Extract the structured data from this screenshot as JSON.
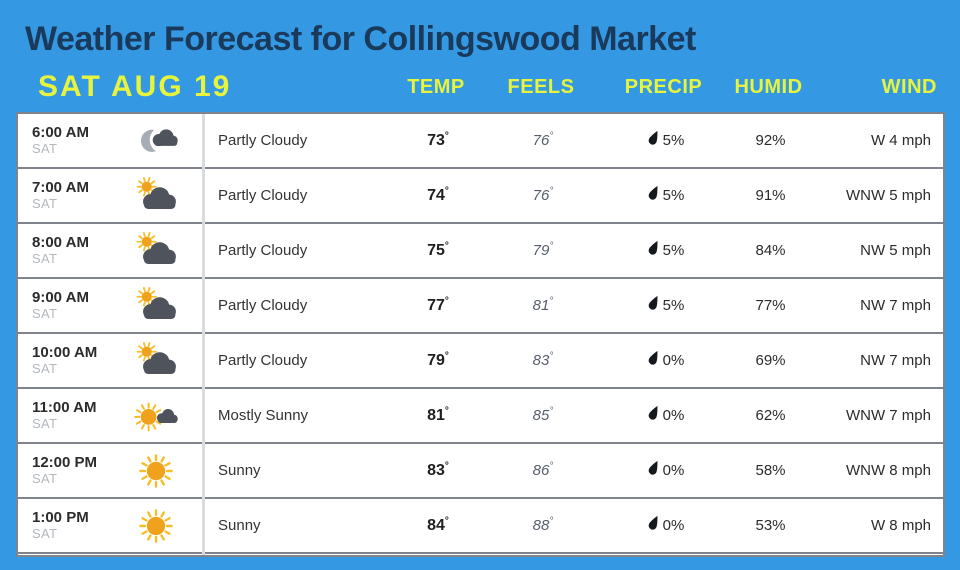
{
  "page": {
    "background_color": "#3498E3",
    "title_color": "#1A3A5C",
    "accent_color": "#E7F43D"
  },
  "header": {
    "title": "Weather Forecast for Collingswood Market",
    "date_label": "SAT AUG 19",
    "columns": [
      "TEMP",
      "FEELS",
      "PRECIP",
      "HUMID",
      "WIND"
    ]
  },
  "table": {
    "deg_symbol": "°",
    "precip_icon": "raindrop-icon",
    "rows": [
      {
        "time": "6:00 AM",
        "day": "SAT",
        "icon": "night-partly-cloudy",
        "condition": "Partly Cloudy",
        "temp": "73",
        "feels": "76",
        "precip": "5%",
        "humid": "92%",
        "wind": "W 4 mph"
      },
      {
        "time": "7:00 AM",
        "day": "SAT",
        "icon": "partly-sunny",
        "condition": "Partly Cloudy",
        "temp": "74",
        "feels": "76",
        "precip": "5%",
        "humid": "91%",
        "wind": "WNW 5 mph"
      },
      {
        "time": "8:00 AM",
        "day": "SAT",
        "icon": "partly-sunny",
        "condition": "Partly Cloudy",
        "temp": "75",
        "feels": "79",
        "precip": "5%",
        "humid": "84%",
        "wind": "NW 5 mph"
      },
      {
        "time": "9:00 AM",
        "day": "SAT",
        "icon": "partly-sunny",
        "condition": "Partly Cloudy",
        "temp": "77",
        "feels": "81",
        "precip": "5%",
        "humid": "77%",
        "wind": "NW 7 mph"
      },
      {
        "time": "10:00 AM",
        "day": "SAT",
        "icon": "partly-sunny",
        "condition": "Partly Cloudy",
        "temp": "79",
        "feels": "83",
        "precip": "0%",
        "humid": "69%",
        "wind": "NW 7 mph"
      },
      {
        "time": "11:00 AM",
        "day": "SAT",
        "icon": "mostly-sunny",
        "condition": "Mostly Sunny",
        "temp": "81",
        "feels": "85",
        "precip": "0%",
        "humid": "62%",
        "wind": "WNW 7 mph"
      },
      {
        "time": "12:00 PM",
        "day": "SAT",
        "icon": "sunny",
        "condition": "Sunny",
        "temp": "83",
        "feels": "86",
        "precip": "0%",
        "humid": "58%",
        "wind": "WNW 8 mph"
      },
      {
        "time": "1:00 PM",
        "day": "SAT",
        "icon": "sunny",
        "condition": "Sunny",
        "temp": "84",
        "feels": "88",
        "precip": "0%",
        "humid": "53%",
        "wind": "W 8 mph"
      }
    ]
  }
}
